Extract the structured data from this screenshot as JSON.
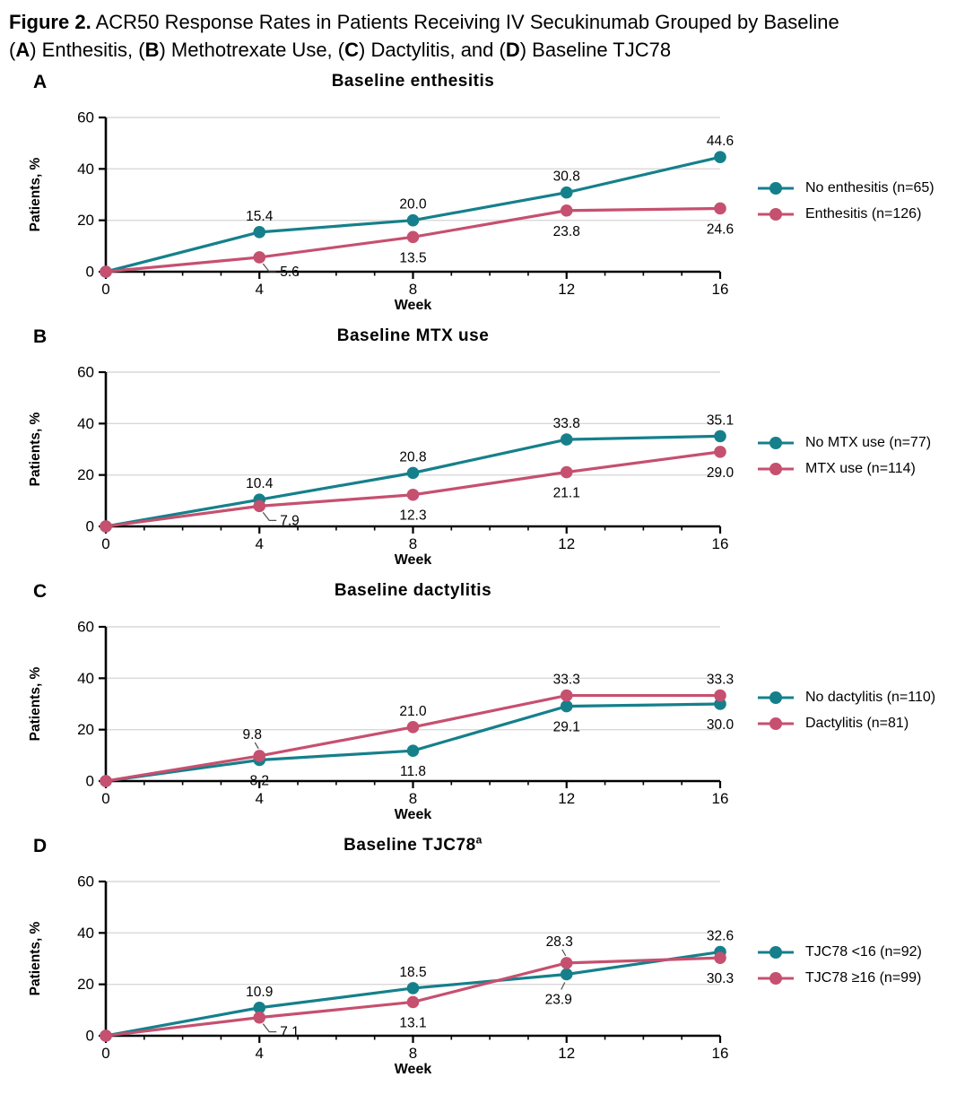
{
  "caption": {
    "segments": [
      {
        "text": "Figure 2.",
        "bold": true
      },
      {
        "text": " ACR50 Response Rates in Patients Receiving IV Secukinumab Grouped by Baseline",
        "bold": false
      },
      {
        "br": true
      },
      {
        "text": "(",
        "bold": false
      },
      {
        "text": "A",
        "bold": true
      },
      {
        "text": ") Enthesitis, (",
        "bold": false
      },
      {
        "text": "B",
        "bold": true
      },
      {
        "text": ") Methotrexate Use, (",
        "bold": false
      },
      {
        "text": "C",
        "bold": true
      },
      {
        "text": ") Dactylitis, and (",
        "bold": false
      },
      {
        "text": "D",
        "bold": true
      },
      {
        "text": ") Baseline TJC78",
        "bold": false
      }
    ]
  },
  "colors": {
    "teal": "#15808B",
    "pink": "#C6506F",
    "grid": "#D9D9D9",
    "axis": "#000000",
    "leader": "#4D4D4D",
    "text": "#000000"
  },
  "chart_data": [
    {
      "type": "line",
      "letter": "A",
      "title": "Baseline enthesitis",
      "title_sup": "",
      "xlabel": "Week",
      "ylabel": "Patients, %",
      "x": [
        0,
        4,
        8,
        12,
        16
      ],
      "xticks": [
        0,
        4,
        8,
        12,
        16
      ],
      "minor_x_step": 1,
      "xlim": [
        0,
        16
      ],
      "ylim": [
        0,
        60
      ],
      "yticks": [
        0,
        20,
        40,
        60
      ],
      "grid": true,
      "legend_position": "right",
      "series": [
        {
          "name": "No enthesitis (n=65)",
          "color": "teal",
          "values": [
            0,
            15.4,
            20.0,
            30.8,
            44.6
          ],
          "labels": [
            null,
            {
              "text": "15.4",
              "pos": "above"
            },
            {
              "text": "20.0",
              "pos": "above"
            },
            {
              "text": "30.8",
              "pos": "above"
            },
            {
              "text": "44.6",
              "pos": "above"
            }
          ]
        },
        {
          "name": "Enthesitis (n=126)",
          "color": "pink",
          "values": [
            0,
            5.6,
            13.5,
            23.8,
            24.6
          ],
          "labels": [
            null,
            {
              "text": "5.6",
              "pos": "right-leader"
            },
            {
              "text": "13.5",
              "pos": "below"
            },
            {
              "text": "23.8",
              "pos": "below"
            },
            {
              "text": "24.6",
              "pos": "below"
            }
          ]
        }
      ]
    },
    {
      "type": "line",
      "letter": "B",
      "title": "Baseline MTX use",
      "title_sup": "",
      "xlabel": "Week",
      "ylabel": "Patients, %",
      "x": [
        0,
        4,
        8,
        12,
        16
      ],
      "xticks": [
        0,
        4,
        8,
        12,
        16
      ],
      "minor_x_step": 1,
      "xlim": [
        0,
        16
      ],
      "ylim": [
        0,
        60
      ],
      "yticks": [
        0,
        20,
        40,
        60
      ],
      "grid": true,
      "legend_position": "right",
      "series": [
        {
          "name": "No MTX use (n=77)",
          "color": "teal",
          "values": [
            0,
            10.4,
            20.8,
            33.8,
            35.1
          ],
          "labels": [
            null,
            {
              "text": "10.4",
              "pos": "above"
            },
            {
              "text": "20.8",
              "pos": "above"
            },
            {
              "text": "33.8",
              "pos": "above"
            },
            {
              "text": "35.1",
              "pos": "above"
            }
          ]
        },
        {
          "name": "MTX use (n=114)",
          "color": "pink",
          "values": [
            0,
            7.9,
            12.3,
            21.1,
            29.0
          ],
          "labels": [
            null,
            {
              "text": "7.9",
              "pos": "right-leader"
            },
            {
              "text": "12.3",
              "pos": "below"
            },
            {
              "text": "21.1",
              "pos": "below"
            },
            {
              "text": "29.0",
              "pos": "below"
            }
          ]
        }
      ]
    },
    {
      "type": "line",
      "letter": "C",
      "title": "Baseline dactylitis",
      "title_sup": "",
      "xlabel": "Week",
      "ylabel": "Patients, %",
      "x": [
        0,
        4,
        8,
        12,
        16
      ],
      "xticks": [
        0,
        4,
        8,
        12,
        16
      ],
      "minor_x_step": 1,
      "xlim": [
        0,
        16
      ],
      "ylim": [
        0,
        60
      ],
      "yticks": [
        0,
        20,
        40,
        60
      ],
      "grid": true,
      "legend_position": "right",
      "series": [
        {
          "name": "No dactylitis (n=110)",
          "color": "teal",
          "values": [
            0,
            8.2,
            11.8,
            29.1,
            30.0
          ],
          "labels": [
            null,
            {
              "text": "8.2",
              "pos": "below"
            },
            {
              "text": "11.8",
              "pos": "below"
            },
            {
              "text": "29.1",
              "pos": "below"
            },
            {
              "text": "30.0",
              "pos": "below"
            }
          ]
        },
        {
          "name": "Dactylitis (n=81)",
          "color": "pink",
          "values": [
            0,
            9.8,
            21.0,
            33.3,
            33.3
          ],
          "labels": [
            null,
            {
              "text": "9.8",
              "pos": "above-leader"
            },
            {
              "text": "21.0",
              "pos": "above"
            },
            {
              "text": "33.3",
              "pos": "above"
            },
            {
              "text": "33.3",
              "pos": "above"
            }
          ]
        }
      ]
    },
    {
      "type": "line",
      "letter": "D",
      "title": "Baseline TJC78",
      "title_sup": "a",
      "xlabel": "Week",
      "ylabel": "Patients, %",
      "x": [
        0,
        4,
        8,
        12,
        16
      ],
      "xticks": [
        0,
        4,
        8,
        12,
        16
      ],
      "minor_x_step": 1,
      "xlim": [
        0,
        16
      ],
      "ylim": [
        0,
        60
      ],
      "yticks": [
        0,
        20,
        40,
        60
      ],
      "grid": true,
      "legend_position": "right",
      "series": [
        {
          "name": "TJC78 <16 (n=92)",
          "color": "teal",
          "values": [
            0,
            10.9,
            18.5,
            23.9,
            32.6
          ],
          "labels": [
            null,
            {
              "text": "10.9",
              "pos": "above"
            },
            {
              "text": "18.5",
              "pos": "above"
            },
            {
              "text": "23.9",
              "pos": "below-leader"
            },
            {
              "text": "32.6",
              "pos": "above"
            }
          ]
        },
        {
          "name": "TJC78 ≥16 (n=99)",
          "color": "pink",
          "values": [
            0,
            7.1,
            13.1,
            28.3,
            30.3
          ],
          "labels": [
            null,
            {
              "text": "7.1",
              "pos": "right-leader"
            },
            {
              "text": "13.1",
              "pos": "below"
            },
            {
              "text": "28.3",
              "pos": "above-leader"
            },
            {
              "text": "30.3",
              "pos": "below"
            }
          ]
        }
      ]
    }
  ]
}
